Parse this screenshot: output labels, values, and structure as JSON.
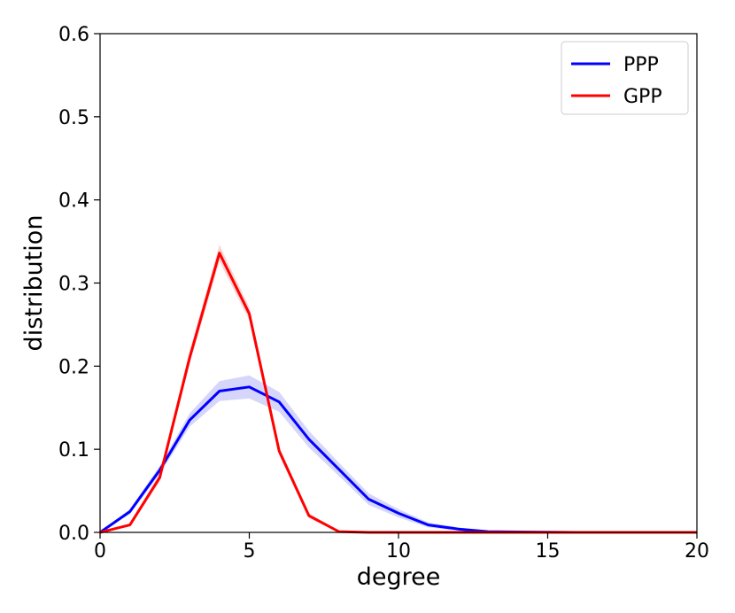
{
  "chart_data": {
    "type": "line",
    "xlabel": "degree",
    "ylabel": "distribution",
    "xlim": [
      0,
      20
    ],
    "ylim": [
      0,
      0.6
    ],
    "xticks": [
      0,
      5,
      10,
      15,
      20
    ],
    "yticks": [
      0.0,
      0.1,
      0.2,
      0.3,
      0.4,
      0.5,
      0.6
    ],
    "xtick_labels": [
      "0",
      "5",
      "10",
      "15",
      "20"
    ],
    "ytick_labels": [
      "0.0",
      "0.1",
      "0.2",
      "0.3",
      "0.4",
      "0.5",
      "0.6"
    ],
    "grid": false,
    "legend_position": "top-right",
    "series": [
      {
        "name": "PPP",
        "color": "#0000ff",
        "band_color": "#c8c8f8",
        "x": [
          0,
          1,
          2,
          3,
          4,
          5,
          6,
          7,
          8,
          9,
          10,
          11,
          12,
          13,
          14,
          15,
          16,
          17,
          18,
          19,
          20
        ],
        "values": [
          0.0,
          0.025,
          0.075,
          0.135,
          0.17,
          0.175,
          0.157,
          0.112,
          0.076,
          0.04,
          0.023,
          0.009,
          0.004,
          0.001,
          0.0005,
          0.0002,
          0.0,
          0.0,
          0.0,
          0.0,
          0.0
        ],
        "band": [
          0.0,
          0.003,
          0.005,
          0.008,
          0.012,
          0.014,
          0.012,
          0.01,
          0.008,
          0.007,
          0.005,
          0.003,
          0.002,
          0.001,
          0.0005,
          0.0002,
          0.0,
          0.0,
          0.0,
          0.0,
          0.0
        ]
      },
      {
        "name": "GPP",
        "color": "#ff0000",
        "band_color": "#f8c8c8",
        "x": [
          0,
          1,
          2,
          3,
          4,
          5,
          6,
          7,
          8,
          9,
          10,
          11,
          12,
          13,
          14,
          15,
          16,
          17,
          18,
          19,
          20
        ],
        "values": [
          0.0,
          0.009,
          0.066,
          0.21,
          0.336,
          0.263,
          0.098,
          0.02,
          0.001,
          0.0,
          0.0,
          0.0,
          0.0,
          0.0,
          0.0,
          0.0,
          0.0,
          0.0,
          0.0,
          0.0,
          0.0
        ],
        "band": [
          0.0,
          0.002,
          0.005,
          0.008,
          0.01,
          0.008,
          0.005,
          0.003,
          0.001,
          0.0,
          0.0,
          0.0,
          0.0,
          0.0,
          0.0,
          0.0,
          0.0,
          0.0,
          0.0,
          0.0,
          0.0
        ]
      }
    ]
  }
}
